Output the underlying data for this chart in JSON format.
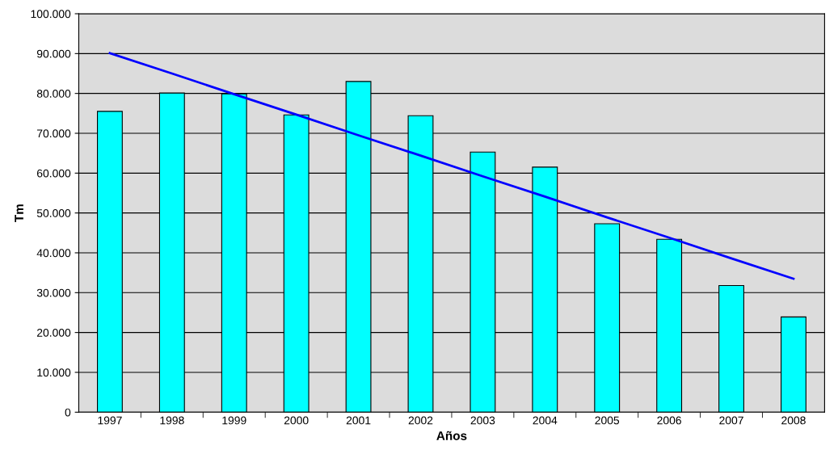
{
  "chart_data": {
    "type": "bar",
    "xlabel": "Años",
    "ylabel": "Tm",
    "categories": [
      "1997",
      "1998",
      "1999",
      "2000",
      "2001",
      "2002",
      "2003",
      "2004",
      "2005",
      "2006",
      "2007",
      "2008"
    ],
    "series": [
      {
        "color": "#00ffff",
        "values": [
          75500,
          80100,
          79900,
          74600,
          83000,
          74400,
          65300,
          61500,
          47300,
          43400,
          31800,
          23900
        ]
      },
      {
        "type": "line",
        "color": "#0000ff",
        "values": [
          90100,
          85000,
          79800,
          74700,
          69500,
          64400,
          59200,
          54100,
          48900,
          43800,
          38600,
          33500
        ]
      }
    ],
    "ylim": [
      0,
      100000
    ],
    "yticks": [
      0,
      {
        "value": 10000,
        "label": "10.000"
      },
      {
        "value": 20000,
        "label": "20.000"
      },
      {
        "value": 30000,
        "label": "30.000"
      },
      {
        "value": 40000,
        "label": "40.000"
      },
      {
        "value": 50000,
        "label": "50.000"
      },
      {
        "value": 60000,
        "label": "60.000"
      },
      {
        "value": 70000,
        "label": "70.000"
      },
      {
        "value": 80000,
        "label": "80.000"
      },
      {
        "value": 90000,
        "label": "90.000"
      },
      {
        "value": 100000,
        "label": "100.000"
      }
    ],
    "grid": "y",
    "legend": false,
    "marker": "none",
    "line_style": "solid"
  }
}
